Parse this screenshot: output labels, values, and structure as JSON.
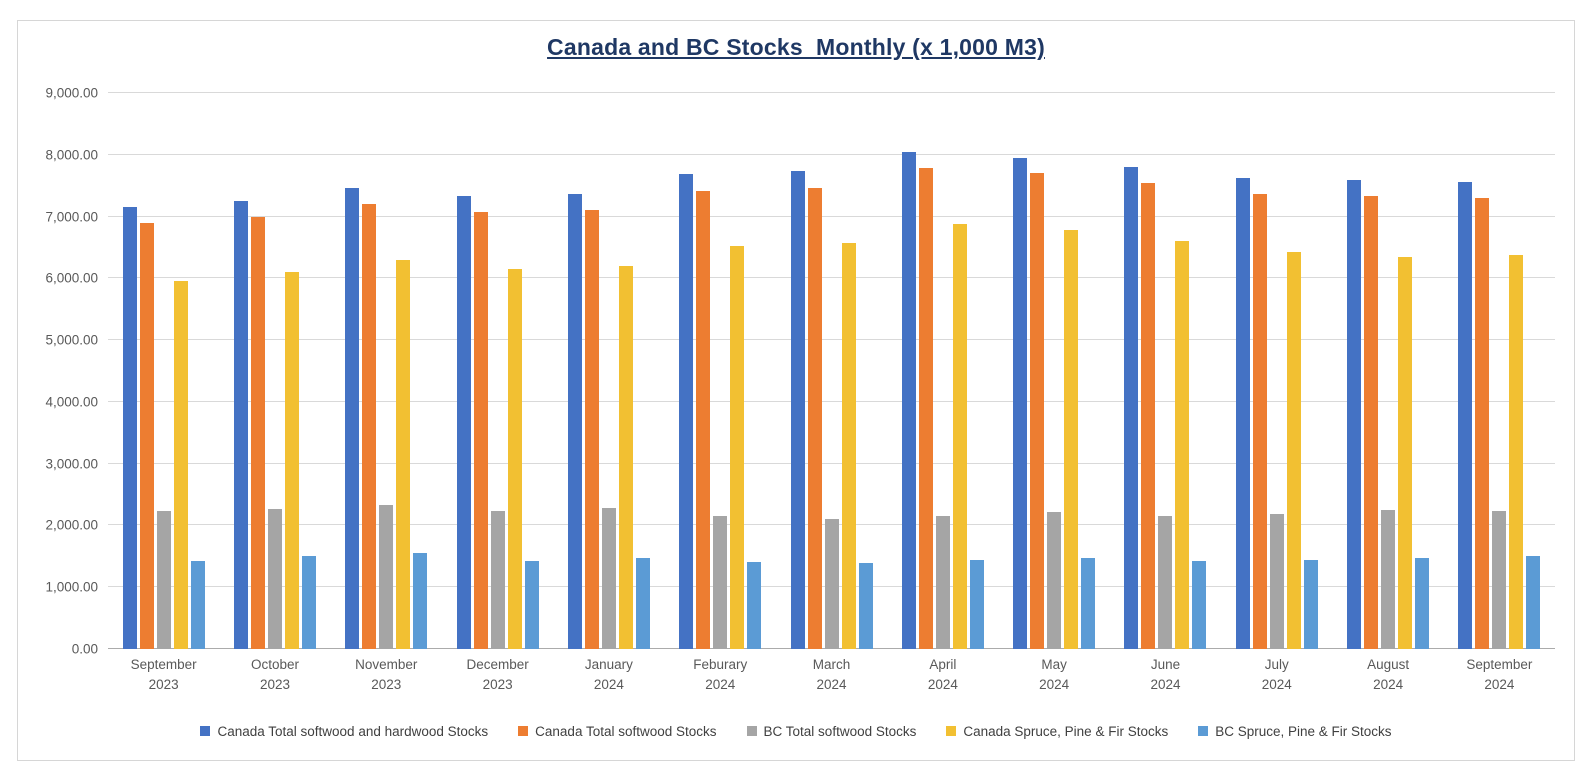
{
  "chart_data": {
    "type": "bar",
    "title": "Canada and BC Stocks  Monthly (x 1,000 M3)",
    "title_color": "#1f3864",
    "categories": [
      {
        "month": "September",
        "year": "2023"
      },
      {
        "month": "October",
        "year": "2023"
      },
      {
        "month": "November",
        "year": "2023"
      },
      {
        "month": "December",
        "year": "2023"
      },
      {
        "month": "January",
        "year": "2024"
      },
      {
        "month": "Feburary",
        "year": "2024"
      },
      {
        "month": "March",
        "year": "2024"
      },
      {
        "month": "April",
        "year": "2024"
      },
      {
        "month": "May",
        "year": "2024"
      },
      {
        "month": "June",
        "year": "2024"
      },
      {
        "month": "July",
        "year": "2024"
      },
      {
        "month": "August",
        "year": "2024"
      },
      {
        "month": "September",
        "year": "2024"
      }
    ],
    "series": [
      {
        "name": "Canada Total softwood and hardwood Stocks",
        "color": "#4472c4",
        "values": [
          7150,
          7250,
          7470,
          7330,
          7370,
          7690,
          7730,
          8050,
          7950,
          7800,
          7630,
          7600,
          7560
        ]
      },
      {
        "name": "Canada Total softwood Stocks",
        "color": "#ed7d31",
        "values": [
          6900,
          6990,
          7200,
          7080,
          7110,
          7410,
          7460,
          7790,
          7710,
          7550,
          7370,
          7330,
          7300
        ]
      },
      {
        "name": "BC Total softwood Stocks",
        "color": "#a5a5a5",
        "values": [
          2240,
          2270,
          2330,
          2240,
          2290,
          2150,
          2100,
          2160,
          2220,
          2160,
          2180,
          2250,
          2240
        ]
      },
      {
        "name": "Canada Spruce, Pine & Fir Stocks",
        "color": "#f2c032",
        "values": [
          5960,
          6100,
          6300,
          6150,
          6200,
          6530,
          6570,
          6880,
          6780,
          6600,
          6430,
          6340,
          6380
        ]
      },
      {
        "name": "BC Spruce, Pine & Fir Stocks",
        "color": "#5b9bd5",
        "values": [
          1430,
          1500,
          1550,
          1430,
          1480,
          1410,
          1390,
          1440,
          1480,
          1420,
          1440,
          1470,
          1510
        ]
      }
    ],
    "ylim": [
      0,
      9000
    ],
    "ytick_step": 1000,
    "ytick_labels": [
      "0.00",
      "1,000.00",
      "2,000.00",
      "3,000.00",
      "4,000.00",
      "5,000.00",
      "6,000.00",
      "7,000.00",
      "8,000.00",
      "9,000.00"
    ],
    "grid": true,
    "legend_position": "bottom",
    "gridline_color": "#d9d9d9",
    "axis_line_color": "#ababab",
    "axis_text_color": "#595959",
    "legend_text_color": "#404040"
  }
}
